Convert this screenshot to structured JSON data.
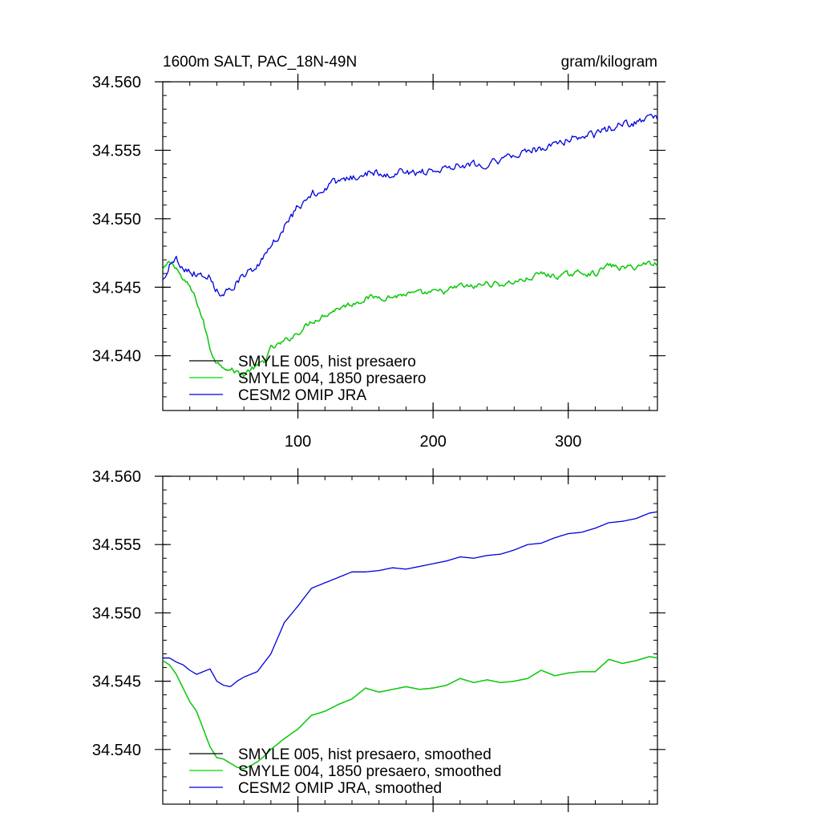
{
  "figure": {
    "title": "1600m SALT, PAC_18N-49N",
    "units": "gram/kilogram"
  },
  "chart_data": [
    {
      "type": "line",
      "panel": "top",
      "title": "1600m SALT, PAC_18N-49N",
      "units": "gram/kilogram",
      "xlabel": "",
      "ylabel": "",
      "xlim": [
        0,
        366
      ],
      "ylim": [
        34.536,
        34.56
      ],
      "x_ticks": [
        100,
        200,
        300
      ],
      "x_tick_labels": [
        "100",
        "200",
        "300"
      ],
      "y_ticks": [
        34.54,
        34.545,
        34.55,
        34.555,
        34.56
      ],
      "y_tick_labels": [
        "34.540",
        "34.545",
        "34.550",
        "34.555",
        "34.560"
      ],
      "x_tick_labels_shown": true,
      "legend_position": "bottom-left",
      "series": [
        {
          "name": "SMYLE 005, hist presaero",
          "color": "#000000",
          "x": [
            0,
            5,
            10,
            15,
            20,
            25,
            30,
            35,
            40,
            45,
            50,
            55,
            60,
            65,
            70,
            75,
            80,
            90,
            100,
            110,
            120,
            130,
            140,
            150,
            160,
            170,
            180,
            190,
            200,
            210,
            220,
            230,
            240,
            250,
            260,
            270,
            280,
            290,
            300,
            310,
            320,
            330,
            340,
            350,
            360,
            366
          ],
          "values": [
            34.5462,
            34.5468,
            34.5465,
            34.5455,
            34.545,
            34.544,
            34.5425,
            34.5405,
            34.5395,
            34.5393,
            34.539,
            34.5388,
            34.5386,
            34.539,
            34.5392,
            34.5396,
            34.5405,
            34.541,
            34.5417,
            34.5425,
            34.543,
            34.5435,
            34.5438,
            34.5442,
            34.5443,
            34.5443,
            34.5445,
            34.5445,
            34.5446,
            34.5447,
            34.5451,
            34.545,
            34.5453,
            34.5452,
            34.5454,
            34.5456,
            34.546,
            34.5458,
            34.5459,
            34.5461,
            34.546,
            34.5466,
            34.5464,
            34.5465,
            34.5468,
            34.5467
          ],
          "noise": 0.00025
        },
        {
          "name": "SMYLE 004, 1850 presaero",
          "color": "#00dd00",
          "x": [
            0,
            5,
            10,
            15,
            20,
            25,
            30,
            35,
            40,
            45,
            50,
            55,
            60,
            65,
            70,
            75,
            80,
            90,
            100,
            110,
            120,
            130,
            140,
            150,
            160,
            170,
            180,
            190,
            200,
            210,
            220,
            230,
            240,
            250,
            260,
            270,
            280,
            290,
            300,
            310,
            320,
            330,
            340,
            350,
            360,
            366
          ],
          "values": [
            34.5462,
            34.5468,
            34.5465,
            34.5455,
            34.545,
            34.544,
            34.5425,
            34.5405,
            34.5395,
            34.5393,
            34.539,
            34.5388,
            34.5386,
            34.539,
            34.5392,
            34.5396,
            34.5405,
            34.541,
            34.5417,
            34.5425,
            34.543,
            34.5435,
            34.5438,
            34.5442,
            34.5443,
            34.5443,
            34.5445,
            34.5445,
            34.5446,
            34.5447,
            34.5451,
            34.545,
            34.5453,
            34.5452,
            34.5454,
            34.5456,
            34.546,
            34.5458,
            34.5459,
            34.5461,
            34.546,
            34.5466,
            34.5464,
            34.5465,
            34.5468,
            34.5467
          ],
          "noise": 0.00025
        },
        {
          "name": "CESM2 OMIP JRA",
          "color": "#0000dd",
          "x": [
            0,
            5,
            10,
            15,
            20,
            25,
            30,
            35,
            40,
            45,
            50,
            55,
            60,
            70,
            80,
            90,
            100,
            110,
            120,
            130,
            140,
            150,
            160,
            170,
            180,
            190,
            200,
            210,
            220,
            230,
            240,
            250,
            260,
            270,
            280,
            290,
            300,
            310,
            320,
            330,
            340,
            350,
            360,
            366
          ],
          "values": [
            34.5455,
            34.5467,
            34.547,
            34.5466,
            34.5462,
            34.546,
            34.546,
            34.5458,
            34.5448,
            34.5446,
            34.545,
            34.5455,
            34.5458,
            34.5465,
            34.5478,
            34.5495,
            34.5508,
            34.5518,
            34.5523,
            34.5527,
            34.553,
            34.5533,
            34.5534,
            34.5533,
            34.5535,
            34.5533,
            34.5536,
            34.5538,
            34.554,
            34.554,
            34.5541,
            34.5543,
            34.5545,
            34.555,
            34.5551,
            34.5555,
            34.5558,
            34.556,
            34.5561,
            34.5566,
            34.5568,
            34.557,
            34.5575,
            34.5573
          ],
          "noise": 0.00035
        }
      ]
    },
    {
      "type": "line",
      "panel": "bottom",
      "title": "",
      "xlabel": "",
      "ylabel": "",
      "xlim": [
        0,
        366
      ],
      "ylim": [
        34.536,
        34.56
      ],
      "x_ticks": [
        100,
        200,
        300
      ],
      "y_ticks": [
        34.54,
        34.545,
        34.55,
        34.555,
        34.56
      ],
      "y_tick_labels": [
        "34.540",
        "34.545",
        "34.550",
        "34.555",
        "34.560"
      ],
      "x_tick_labels_shown": false,
      "legend_position": "bottom-left",
      "series": [
        {
          "name": "SMYLE 005, hist presaero, smoothed",
          "color": "#000000",
          "x": [
            0,
            5,
            10,
            15,
            20,
            25,
            30,
            35,
            40,
            45,
            50,
            55,
            60,
            65,
            70,
            75,
            80,
            90,
            100,
            110,
            120,
            130,
            140,
            150,
            160,
            170,
            180,
            190,
            200,
            210,
            220,
            230,
            240,
            250,
            260,
            270,
            280,
            290,
            300,
            310,
            320,
            330,
            340,
            350,
            360,
            366
          ],
          "values": [
            34.5465,
            34.5462,
            34.5455,
            34.5445,
            34.5435,
            34.5428,
            34.5415,
            34.5402,
            34.5394,
            34.5393,
            34.539,
            34.5387,
            34.5386,
            34.5388,
            34.5391,
            34.5395,
            34.54,
            34.5408,
            34.5415,
            34.5425,
            34.5428,
            34.5433,
            34.5437,
            34.5445,
            34.5442,
            34.5444,
            34.5446,
            34.5444,
            34.5445,
            34.5447,
            34.5452,
            34.5449,
            34.5451,
            34.5449,
            34.545,
            34.5452,
            34.5458,
            34.5454,
            34.5456,
            34.5457,
            34.5457,
            34.5466,
            34.5463,
            34.5465,
            34.5468,
            34.5467
          ],
          "noise": 0
        },
        {
          "name": "SMYLE 004, 1850 presaero, smoothed",
          "color": "#00dd00",
          "x": [
            0,
            5,
            10,
            15,
            20,
            25,
            30,
            35,
            40,
            45,
            50,
            55,
            60,
            65,
            70,
            75,
            80,
            90,
            100,
            110,
            120,
            130,
            140,
            150,
            160,
            170,
            180,
            190,
            200,
            210,
            220,
            230,
            240,
            250,
            260,
            270,
            280,
            290,
            300,
            310,
            320,
            330,
            340,
            350,
            360,
            366
          ],
          "values": [
            34.5465,
            34.5462,
            34.5455,
            34.5445,
            34.5435,
            34.5428,
            34.5415,
            34.5402,
            34.5394,
            34.5393,
            34.539,
            34.5387,
            34.5386,
            34.5388,
            34.5391,
            34.5395,
            34.54,
            34.5408,
            34.5415,
            34.5425,
            34.5428,
            34.5433,
            34.5437,
            34.5445,
            34.5442,
            34.5444,
            34.5446,
            34.5444,
            34.5445,
            34.5447,
            34.5452,
            34.5449,
            34.5451,
            34.5449,
            34.545,
            34.5452,
            34.5458,
            34.5454,
            34.5456,
            34.5457,
            34.5457,
            34.5466,
            34.5463,
            34.5465,
            34.5468,
            34.5467
          ],
          "noise": 0
        },
        {
          "name": "CESM2 OMIP JRA, smoothed",
          "color": "#0000dd",
          "x": [
            0,
            5,
            10,
            15,
            20,
            25,
            30,
            35,
            40,
            45,
            50,
            55,
            60,
            70,
            80,
            90,
            100,
            110,
            120,
            130,
            140,
            150,
            160,
            170,
            180,
            190,
            200,
            210,
            220,
            230,
            240,
            250,
            260,
            270,
            280,
            290,
            300,
            310,
            320,
            330,
            340,
            350,
            360,
            366
          ],
          "values": [
            34.5467,
            34.5467,
            34.5464,
            34.5462,
            34.5458,
            34.5455,
            34.5457,
            34.5459,
            34.545,
            34.5447,
            34.5446,
            34.545,
            34.5453,
            34.5457,
            34.547,
            34.5493,
            34.5505,
            34.5518,
            34.5522,
            34.5526,
            34.553,
            34.553,
            34.5531,
            34.5533,
            34.5532,
            34.5534,
            34.5536,
            34.5538,
            34.5541,
            34.554,
            34.5542,
            34.5543,
            34.5546,
            34.555,
            34.5551,
            34.5555,
            34.5558,
            34.5559,
            34.5562,
            34.5566,
            34.5567,
            34.5569,
            34.5573,
            34.5574
          ],
          "noise": 0
        }
      ]
    }
  ]
}
